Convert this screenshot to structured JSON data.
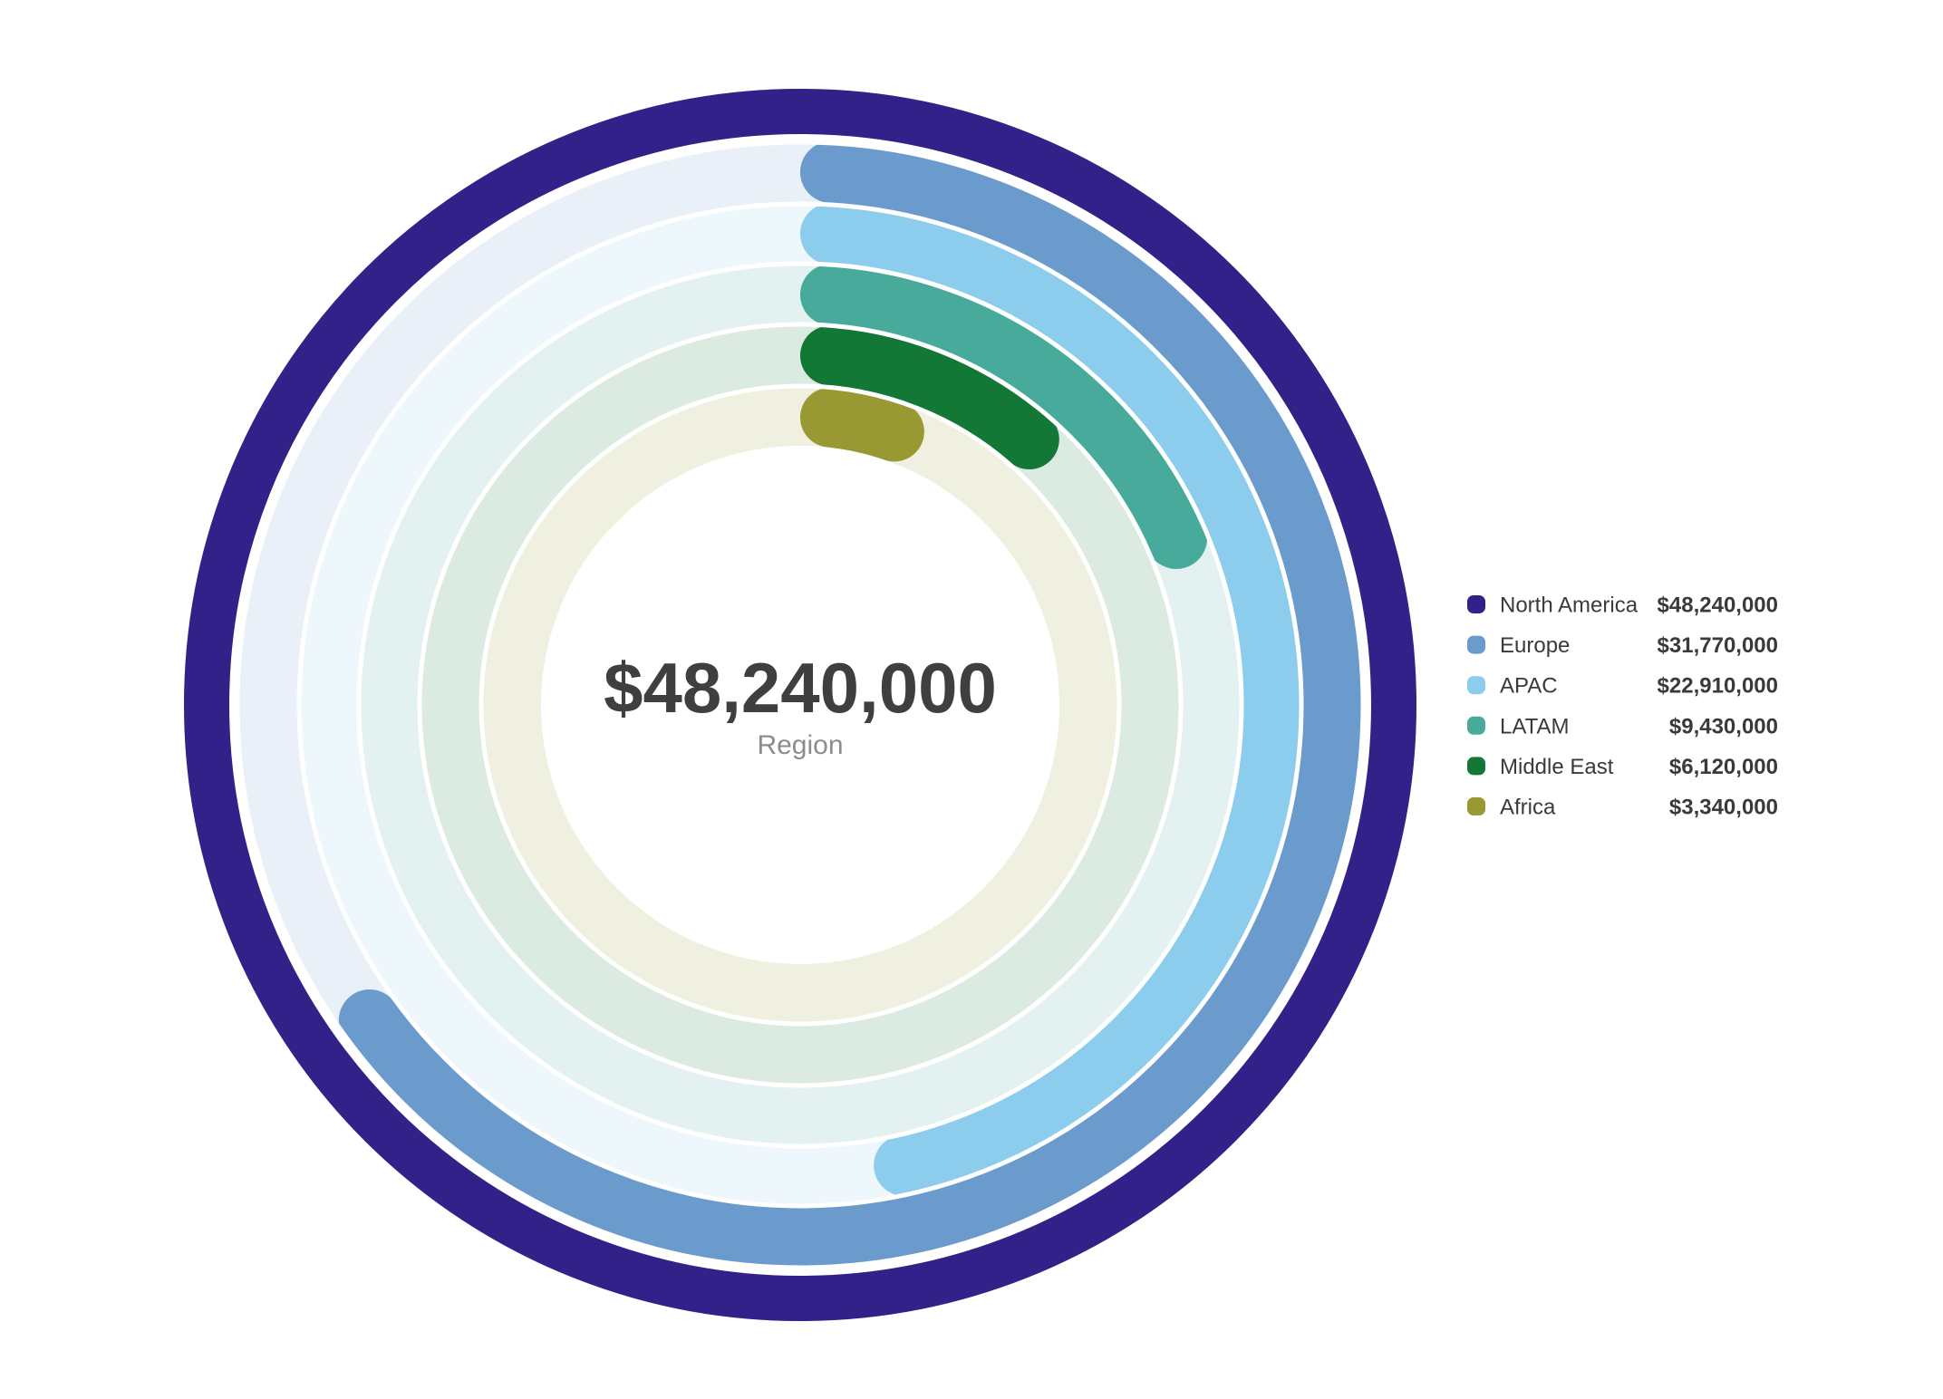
{
  "chart_data": {
    "type": "radial-bar",
    "center": {
      "value": "$48,240,000",
      "label": "Region"
    },
    "max": 48240000,
    "series": [
      {
        "name": "North America",
        "value": 48240000,
        "display": "$48,240,000",
        "color": "#33218a"
      },
      {
        "name": "Europe",
        "value": 31770000,
        "display": "$31,770,000",
        "color": "#6a9bcc"
      },
      {
        "name": "APAC",
        "value": 22910000,
        "display": "$22,910,000",
        "color": "#8ccdee"
      },
      {
        "name": "LATAM",
        "value": 9430000,
        "display": "$9,430,000",
        "color": "#47aa9b"
      },
      {
        "name": "Middle East",
        "value": 6120000,
        "display": "$6,120,000",
        "color": "#137735"
      },
      {
        "name": "Africa",
        "value": 3340000,
        "display": "$3,340,000",
        "color": "#999933"
      }
    ],
    "legend_position": "right"
  }
}
